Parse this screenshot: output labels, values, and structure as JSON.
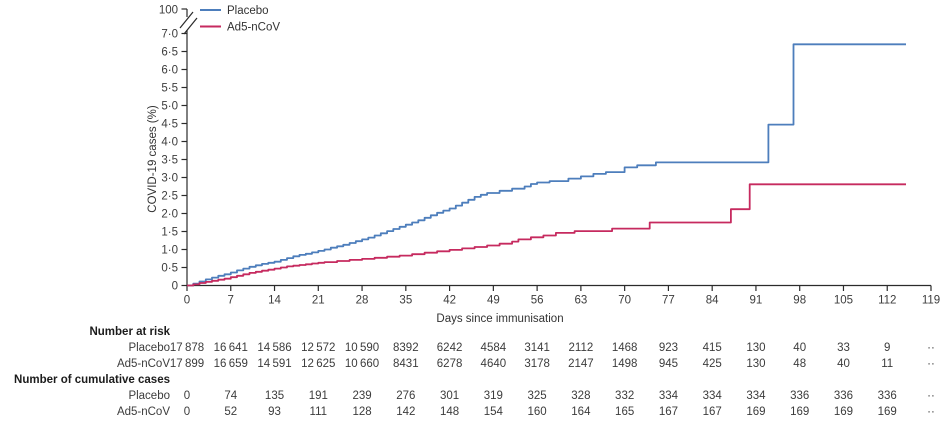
{
  "chart_data": {
    "type": "line",
    "step": true,
    "title": "",
    "xlabel": "Days since immunisation",
    "ylabel": "COVID-19 cases (%)",
    "xlim": [
      0,
      119
    ],
    "xticks": [
      0,
      7,
      14,
      21,
      28,
      35,
      42,
      49,
      56,
      63,
      70,
      77,
      84,
      91,
      98,
      105,
      112,
      119
    ],
    "ylim": [
      0,
      7
    ],
    "ytick_step": 0.5,
    "ytick_labels": [
      "0",
      "0·5",
      "1·0",
      "1·5",
      "2·0",
      "2·5",
      "3·0",
      "3·5",
      "4·0",
      "4·5",
      "5·0",
      "5·5",
      "6·0",
      "6·5",
      "7·0"
    ],
    "axis_break_label": "100",
    "grid": false,
    "legend_position": "top-left-inside",
    "series": [
      {
        "name": "Placebo",
        "color": "#4d7ebc",
        "points": [
          [
            0,
            0
          ],
          [
            1,
            0.05
          ],
          [
            2,
            0.11
          ],
          [
            3,
            0.17
          ],
          [
            4,
            0.22
          ],
          [
            5,
            0.27
          ],
          [
            6,
            0.31
          ],
          [
            7,
            0.36
          ],
          [
            8,
            0.42
          ],
          [
            9,
            0.47
          ],
          [
            10,
            0.52
          ],
          [
            11,
            0.56
          ],
          [
            12,
            0.6
          ],
          [
            13,
            0.63
          ],
          [
            14,
            0.66
          ],
          [
            15,
            0.71
          ],
          [
            16,
            0.76
          ],
          [
            17,
            0.81
          ],
          [
            18,
            0.85
          ],
          [
            19,
            0.88
          ],
          [
            20,
            0.92
          ],
          [
            21,
            0.96
          ],
          [
            22,
            1.0
          ],
          [
            23,
            1.05
          ],
          [
            24,
            1.09
          ],
          [
            25,
            1.13
          ],
          [
            26,
            1.18
          ],
          [
            27,
            1.23
          ],
          [
            28,
            1.28
          ],
          [
            29,
            1.33
          ],
          [
            30,
            1.39
          ],
          [
            31,
            1.45
          ],
          [
            32,
            1.51
          ],
          [
            33,
            1.57
          ],
          [
            34,
            1.63
          ],
          [
            35,
            1.69
          ],
          [
            36,
            1.75
          ],
          [
            37,
            1.81
          ],
          [
            38,
            1.88
          ],
          [
            39,
            1.95
          ],
          [
            40,
            2.02
          ],
          [
            41,
            2.08
          ],
          [
            42,
            2.14
          ],
          [
            43,
            2.22
          ],
          [
            44,
            2.3
          ],
          [
            45,
            2.38
          ],
          [
            46,
            2.46
          ],
          [
            47,
            2.52
          ],
          [
            48,
            2.57
          ],
          [
            50,
            2.63
          ],
          [
            52,
            2.69
          ],
          [
            54,
            2.75
          ],
          [
            55,
            2.82
          ],
          [
            56,
            2.86
          ],
          [
            58,
            2.9
          ],
          [
            61,
            2.97
          ],
          [
            63,
            3.03
          ],
          [
            65,
            3.1
          ],
          [
            67,
            3.15
          ],
          [
            70,
            3.28
          ],
          [
            72,
            3.34
          ],
          [
            75,
            3.42
          ],
          [
            93,
            4.47
          ],
          [
            97,
            6.7
          ],
          [
            115,
            6.7
          ]
        ]
      },
      {
        "name": "Ad5-nCoV",
        "color": "#c62a5f",
        "points": [
          [
            0,
            0
          ],
          [
            1,
            0.03
          ],
          [
            2,
            0.07
          ],
          [
            3,
            0.1
          ],
          [
            4,
            0.13
          ],
          [
            5,
            0.16
          ],
          [
            6,
            0.19
          ],
          [
            7,
            0.23
          ],
          [
            8,
            0.27
          ],
          [
            9,
            0.31
          ],
          [
            10,
            0.35
          ],
          [
            11,
            0.38
          ],
          [
            12,
            0.41
          ],
          [
            13,
            0.44
          ],
          [
            14,
            0.47
          ],
          [
            15,
            0.5
          ],
          [
            16,
            0.53
          ],
          [
            17,
            0.55
          ],
          [
            18,
            0.57
          ],
          [
            19,
            0.59
          ],
          [
            20,
            0.61
          ],
          [
            21,
            0.63
          ],
          [
            22,
            0.65
          ],
          [
            24,
            0.68
          ],
          [
            26,
            0.71
          ],
          [
            28,
            0.74
          ],
          [
            30,
            0.77
          ],
          [
            32,
            0.8
          ],
          [
            34,
            0.83
          ],
          [
            36,
            0.87
          ],
          [
            38,
            0.91
          ],
          [
            40,
            0.95
          ],
          [
            42,
            0.99
          ],
          [
            44,
            1.03
          ],
          [
            46,
            1.07
          ],
          [
            48,
            1.11
          ],
          [
            50,
            1.16
          ],
          [
            52,
            1.22
          ],
          [
            53,
            1.28
          ],
          [
            55,
            1.34
          ],
          [
            57,
            1.39
          ],
          [
            59,
            1.46
          ],
          [
            62,
            1.51
          ],
          [
            68,
            1.58
          ],
          [
            74,
            1.75
          ],
          [
            87,
            2.12
          ],
          [
            90,
            2.81
          ],
          [
            115,
            2.81
          ]
        ]
      }
    ]
  },
  "risk_table": {
    "section_at_risk": "Number at risk",
    "section_cumulative": "Number of cumulative cases",
    "row_labels": {
      "placebo": "Placebo",
      "ad5": "Ad5-nCoV"
    },
    "at_risk": {
      "placebo": [
        "17 878",
        "16 641",
        "14 586",
        "12 572",
        "10 590",
        "8392",
        "6242",
        "4584",
        "3141",
        "2112",
        "1468",
        "923",
        "415",
        "130",
        "40",
        "33",
        "9",
        "··"
      ],
      "ad5": [
        "17 899",
        "16 659",
        "14 591",
        "12 625",
        "10 660",
        "8431",
        "6278",
        "4640",
        "3178",
        "2147",
        "1498",
        "945",
        "425",
        "130",
        "48",
        "40",
        "11",
        "··"
      ]
    },
    "cumulative": {
      "placebo": [
        "0",
        "74",
        "135",
        "191",
        "239",
        "276",
        "301",
        "319",
        "325",
        "328",
        "332",
        "334",
        "334",
        "334",
        "336",
        "336",
        "336",
        "··"
      ],
      "ad5": [
        "0",
        "52",
        "93",
        "111",
        "128",
        "142",
        "148",
        "154",
        "160",
        "164",
        "165",
        "167",
        "167",
        "169",
        "169",
        "169",
        "169",
        "··"
      ]
    }
  }
}
